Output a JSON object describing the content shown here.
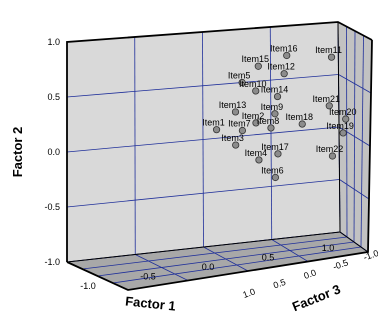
{
  "chart_data": {
    "type": "scatter",
    "projection": "3d",
    "axes": {
      "x": {
        "label": "Factor 1",
        "range": [
          -1.0,
          1.0
        ],
        "ticks": [
          "-1.0",
          "-0.5",
          "0.0",
          "0.5",
          "1.0"
        ]
      },
      "y": {
        "label": "Factor 2",
        "range": [
          -1.0,
          1.0
        ],
        "ticks": [
          "-1.0",
          "-0.5",
          "0.0",
          "0.5",
          "1.0"
        ]
      },
      "z": {
        "label": "Factor 3",
        "range": [
          -1.0,
          1.0
        ],
        "ticks": [
          "1.0",
          "0.5",
          "0.0",
          "-0.5",
          "-1.0"
        ]
      }
    },
    "grid": true,
    "colors": {
      "back_wall": "#d9d9d9",
      "side_wall": "#c2c2c2",
      "floor": "#a8a8a8",
      "grid_line": "#1f2f9a",
      "point_fill": "#8c8c8c",
      "point_stroke": "#333333"
    },
    "points": [
      {
        "label": "Item16",
        "x": 0.62,
        "y": 0.72,
        "z": 0.0
      },
      {
        "label": "Item11",
        "x": 0.95,
        "y": 0.67,
        "z": 0.0
      },
      {
        "label": "Item15",
        "x": 0.41,
        "y": 0.64,
        "z": 0.0
      },
      {
        "label": "Item12",
        "x": 0.6,
        "y": 0.55,
        "z": 0.0
      },
      {
        "label": "Item5",
        "x": 0.29,
        "y": 0.5,
        "z": 0.0
      },
      {
        "label": "Item10",
        "x": 0.39,
        "y": 0.41,
        "z": 0.0
      },
      {
        "label": "Item14",
        "x": 0.55,
        "y": 0.34,
        "z": 0.0
      },
      {
        "label": "Item13",
        "x": 0.24,
        "y": 0.23,
        "z": 0.0
      },
      {
        "label": "Item9",
        "x": 0.53,
        "y": 0.18,
        "z": 0.0
      },
      {
        "label": "Item21",
        "x": 0.93,
        "y": 0.21,
        "z": 0.0
      },
      {
        "label": "Item2",
        "x": 0.39,
        "y": 0.11,
        "z": 0.0
      },
      {
        "label": "Item1",
        "x": 0.1,
        "y": 0.08,
        "z": 0.0
      },
      {
        "label": "Item20",
        "x": 1.05,
        "y": 0.07,
        "z": 0.0
      },
      {
        "label": "Item7",
        "x": 0.29,
        "y": 0.05,
        "z": 0.0
      },
      {
        "label": "Item8",
        "x": 0.5,
        "y": 0.05,
        "z": 0.0
      },
      {
        "label": "Item18",
        "x": 0.73,
        "y": 0.06,
        "z": 0.0
      },
      {
        "label": "Item19",
        "x": 1.03,
        "y": -0.06,
        "z": 0.0
      },
      {
        "label": "Item3",
        "x": 0.24,
        "y": -0.08,
        "z": 0.0
      },
      {
        "label": "Item17",
        "x": 0.55,
        "y": -0.2,
        "z": 0.0
      },
      {
        "label": "Item4",
        "x": 0.41,
        "y": -0.24,
        "z": 0.0
      },
      {
        "label": "Item22",
        "x": 0.95,
        "y": -0.27,
        "z": 0.0
      },
      {
        "label": "Item6",
        "x": 0.53,
        "y": -0.42,
        "z": 0.0
      }
    ]
  }
}
